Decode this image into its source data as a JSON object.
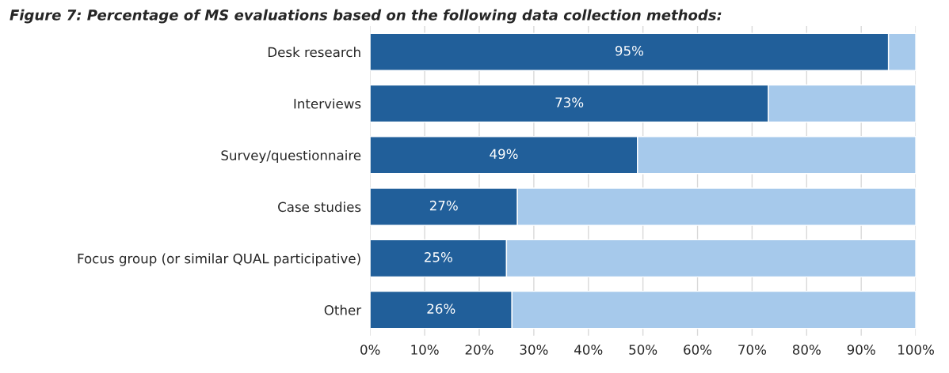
{
  "chart_data": {
    "type": "bar",
    "orientation": "horizontal",
    "stacked": true,
    "title": "Figure 7: Percentage of MS evaluations based on the following data collection methods:",
    "categories": [
      "Desk research",
      "Interviews",
      "Survey/questionnaire",
      "Case studies",
      "Focus group (or similar QUAL participative)",
      "Other"
    ],
    "series": [
      {
        "color": "#215f9a",
        "values": [
          95,
          73,
          49,
          27,
          25,
          26
        ],
        "value_labels": [
          "95%",
          "73%",
          "49%",
          "27%",
          "25%",
          "26%"
        ]
      },
      {
        "color": "#a6c9eb",
        "values": [
          5,
          27,
          51,
          73,
          75,
          74
        ]
      }
    ],
    "xlim": [
      0,
      100
    ],
    "xticks": [
      {
        "value": 0,
        "label": "0%"
      },
      {
        "value": 10,
        "label": "10%"
      },
      {
        "value": 20,
        "label": "20%"
      },
      {
        "value": 30,
        "label": "30%"
      },
      {
        "value": 40,
        "label": "40%"
      },
      {
        "value": 50,
        "label": "50%"
      },
      {
        "value": 60,
        "label": "60%"
      },
      {
        "value": 70,
        "label": "70%"
      },
      {
        "value": 80,
        "label": "80%"
      },
      {
        "value": 90,
        "label": "90%"
      },
      {
        "value": 100,
        "label": "100%"
      }
    ],
    "grid": "x"
  }
}
